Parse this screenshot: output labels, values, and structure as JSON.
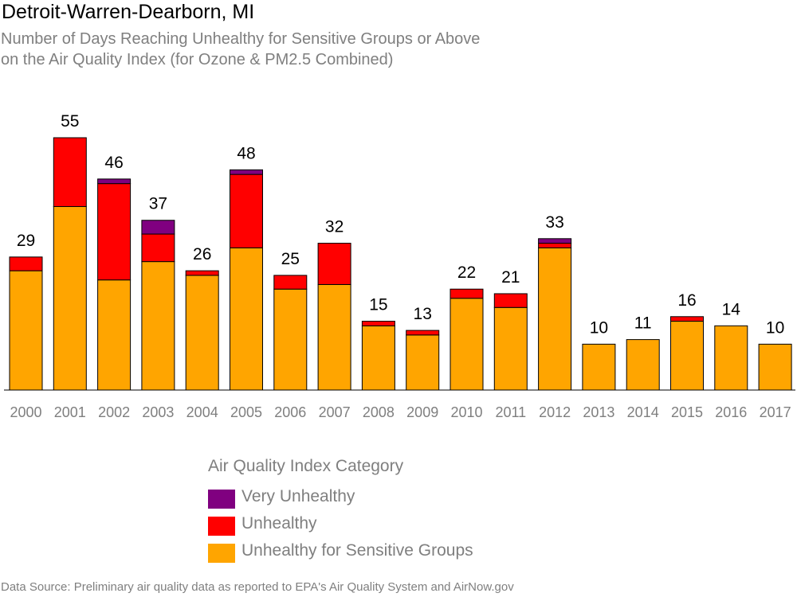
{
  "title": "Detroit-Warren-Dearborn, MI",
  "subtitle_line1": "Number of Days Reaching Unhealthy for Sensitive Groups or Above",
  "subtitle_line2": "on the Air Quality Index (for Ozone & PM2.5 Combined)",
  "legend": {
    "title": "Air Quality Index Category",
    "items": [
      {
        "label": "Very Unhealthy",
        "color": "#800080"
      },
      {
        "label": "Unhealthy",
        "color": "#ff0000"
      },
      {
        "label": "Unhealthy for Sensitive Groups",
        "color": "#ffa500"
      }
    ]
  },
  "source": "Data Source: Preliminary air quality data as reported to EPA's Air Quality System and AirNow.gov",
  "chart_data": {
    "type": "bar",
    "stacked": true,
    "categories": [
      "2000",
      "2001",
      "2002",
      "2003",
      "2004",
      "2005",
      "2006",
      "2007",
      "2008",
      "2009",
      "2010",
      "2011",
      "2012",
      "2013",
      "2014",
      "2015",
      "2016",
      "2017"
    ],
    "series": [
      {
        "name": "Unhealthy for Sensitive Groups",
        "color": "#ffa500",
        "values": [
          26,
          40,
          24,
          28,
          25,
          31,
          22,
          23,
          14,
          12,
          20,
          18,
          31,
          10,
          11,
          15,
          14,
          10
        ]
      },
      {
        "name": "Unhealthy",
        "color": "#ff0000",
        "values": [
          3,
          15,
          21,
          6,
          1,
          16,
          3,
          9,
          1,
          1,
          2,
          3,
          1,
          0,
          0,
          1,
          0,
          0
        ]
      },
      {
        "name": "Very Unhealthy",
        "color": "#800080",
        "values": [
          0,
          0,
          1,
          3,
          0,
          1,
          0,
          0,
          0,
          0,
          0,
          0,
          1,
          0,
          0,
          0,
          0,
          0
        ]
      }
    ],
    "totals": [
      29,
      55,
      46,
      37,
      26,
      48,
      25,
      32,
      15,
      13,
      22,
      21,
      33,
      10,
      11,
      16,
      14,
      10
    ],
    "ylim": [
      0,
      55
    ],
    "grid": false,
    "legend_position": "bottom"
  }
}
